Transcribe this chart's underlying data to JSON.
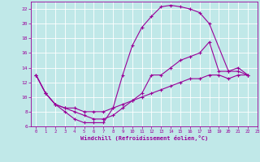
{
  "xlabel": "Windchill (Refroidissement éolien,°C)",
  "bg_color": "#c0e8e8",
  "line_color": "#990099",
  "grid_color": "#ffffff",
  "xlim": [
    -0.5,
    23
  ],
  "ylim": [
    6,
    23
  ],
  "xticks": [
    0,
    1,
    2,
    3,
    4,
    5,
    6,
    7,
    8,
    9,
    10,
    11,
    12,
    13,
    14,
    15,
    16,
    17,
    18,
    19,
    20,
    21,
    22,
    23
  ],
  "yticks": [
    6,
    8,
    10,
    12,
    14,
    16,
    18,
    20,
    22
  ],
  "line1_x": [
    0,
    1,
    2,
    3,
    4,
    5,
    6,
    7,
    8,
    9,
    10,
    11,
    12,
    13,
    14,
    15,
    16,
    17,
    18,
    20,
    21,
    22
  ],
  "line1_y": [
    13,
    10.5,
    9,
    8,
    7,
    6.5,
    6.5,
    6.5,
    8.5,
    13,
    17,
    19.5,
    21,
    22.3,
    22.5,
    22.3,
    22,
    21.5,
    20,
    13.5,
    13.5,
    13
  ],
  "line2_x": [
    0,
    1,
    2,
    3,
    4,
    5,
    6,
    7,
    8,
    9,
    10,
    11,
    12,
    13,
    14,
    15,
    16,
    17,
    18,
    19,
    20,
    21,
    22
  ],
  "line2_y": [
    13,
    10.5,
    9,
    8.5,
    8,
    7.5,
    7,
    7,
    7.5,
    8.5,
    9.5,
    10.5,
    13,
    13,
    14,
    15,
    15.5,
    16,
    17.5,
    13.5,
    13.5,
    14,
    13
  ],
  "line3_x": [
    0,
    1,
    2,
    3,
    4,
    5,
    6,
    7,
    8,
    9,
    10,
    11,
    12,
    13,
    14,
    15,
    16,
    17,
    18,
    19,
    20,
    21,
    22
  ],
  "line3_y": [
    13,
    10.5,
    9,
    8.5,
    8.5,
    8,
    8,
    8,
    8.5,
    9,
    9.5,
    10,
    10.5,
    11,
    11.5,
    12,
    12.5,
    12.5,
    13,
    13,
    12.5,
    13,
    13
  ]
}
